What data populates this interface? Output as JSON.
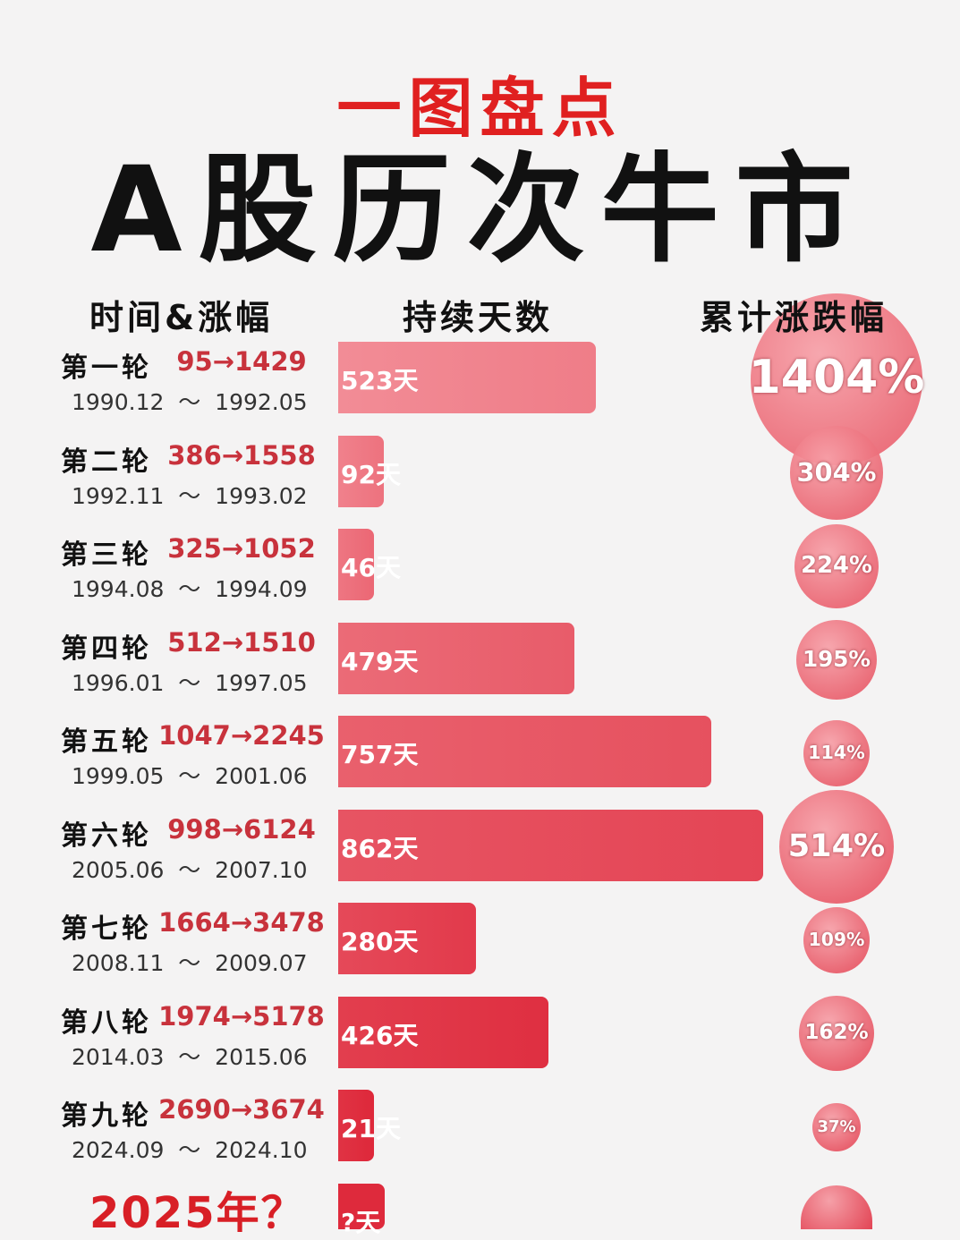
{
  "title_top": "一图盘点",
  "title_main": "A股历次牛市",
  "headers": {
    "time": "时间&涨幅",
    "days": "持续天数",
    "cum": "累计涨跌幅"
  },
  "chart_data": {
    "type": "bar",
    "categories": [
      "第一轮",
      "第二轮",
      "第三轮",
      "第四轮",
      "第五轮",
      "第六轮",
      "第七轮",
      "第八轮",
      "第九轮",
      ""
    ],
    "rows": [
      {
        "label": "第一轮",
        "range": "95→1429",
        "dates": "1990.12  ～  1992.05",
        "days": 523,
        "days_label": "523天",
        "cum": 1404,
        "cum_label": "1404%"
      },
      {
        "label": "第二轮",
        "range": "386→1558",
        "dates": "1992.11  ～  1993.02",
        "days": 92,
        "days_label": "92天",
        "cum": 304,
        "cum_label": "304%"
      },
      {
        "label": "第三轮",
        "range": "325→1052",
        "dates": "1994.08  ～  1994.09",
        "days": 46,
        "days_label": "46天",
        "cum": 224,
        "cum_label": "224%"
      },
      {
        "label": "第四轮",
        "range": "512→1510",
        "dates": "1996.01  ～  1997.05",
        "days": 479,
        "days_label": "479天",
        "cum": 195,
        "cum_label": "195%"
      },
      {
        "label": "第五轮",
        "range": "1047→2245",
        "dates": "1999.05  ～  2001.06",
        "days": 757,
        "days_label": "757天",
        "cum": 114,
        "cum_label": "114%"
      },
      {
        "label": "第六轮",
        "range": "998→6124",
        "dates": "2005.06  ～  2007.10",
        "days": 862,
        "days_label": "862天",
        "cum": 514,
        "cum_label": "514%"
      },
      {
        "label": "第七轮",
        "range": "1664→3478",
        "dates": "2008.11  ～  2009.07",
        "days": 280,
        "days_label": "280天",
        "cum": 109,
        "cum_label": "109%"
      },
      {
        "label": "第八轮",
        "range": "1974→5178",
        "dates": "2014.03  ～  2015.06",
        "days": 426,
        "days_label": "426天",
        "cum": 162,
        "cum_label": "162%"
      },
      {
        "label": "第九轮",
        "range": "2690→3674",
        "dates": "2024.09  ～  2024.10",
        "days": 21,
        "days_label": "21天",
        "cum": 37,
        "cum_label": "37%"
      }
    ],
    "final_row": {
      "label": "2025年？",
      "days_label": "?天",
      "days": 40,
      "cum_label": ""
    }
  },
  "colors": {
    "title_red": "#e02020",
    "bar_light": "#f0808c",
    "bar_dark": "#e03040",
    "range_red": "#c8323c"
  }
}
